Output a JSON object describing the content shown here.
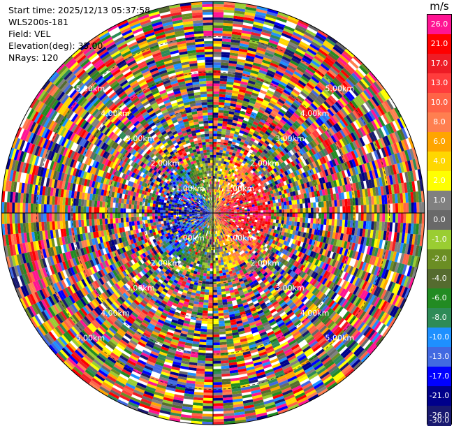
{
  "info": {
    "start_time": "Start time: 2025/12/13 05:37:58",
    "instrument": "WLS200s-181",
    "field": "Field: VEL",
    "elevation": "Elevation(deg): 35.00",
    "nrays": "NRays: 120"
  },
  "chart_data": {
    "type": "heatmap",
    "projection": "polar-ppi",
    "field": "VEL",
    "units": "m/s",
    "n_rays": 120,
    "max_range_km": 6.0,
    "range_rings_km": [
      1.0,
      2.0,
      3.0,
      4.0,
      5.0,
      6.0
    ],
    "ring_labels": [
      "1.00km",
      "2.00km",
      "3.00km",
      "4.00km",
      "5.00km"
    ],
    "colorbar": {
      "title": "m/s",
      "ticks": [
        "26.0",
        "21.0",
        "17.0",
        "13.0",
        "10.0",
        "8.0",
        "6.0",
        "4.0",
        "2.0",
        "1.0",
        "0.0",
        "-1.0",
        "-2.0",
        "-4.0",
        "-6.0",
        "-8.0",
        "-10.0",
        "-13.0",
        "-17.0",
        "-21.0",
        "-26.0",
        "-30.0"
      ],
      "colors": [
        "#ff1493",
        "#ff0000",
        "#ee1c25",
        "#ff3c3c",
        "#ff6347",
        "#ff7f50",
        "#ffa500",
        "#ffd700",
        "#ffff00",
        "#808080",
        "#696969",
        "#9acd32",
        "#6b8e23",
        "#556b2f",
        "#228b22",
        "#2e8b57",
        "#1e90ff",
        "#4169e1",
        "#0000ff",
        "#00008b",
        "#191970"
      ]
    },
    "near_field": {
      "description_ranges_km": [
        0,
        1.5
      ],
      "west_sector": "negative (toward)",
      "east_sector": "positive (away)"
    }
  }
}
